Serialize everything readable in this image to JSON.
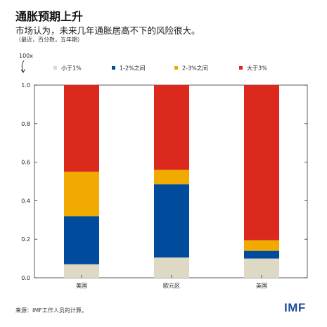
{
  "header": {
    "title": "通胀预期上升",
    "subtitle": "市场认为，未来几年通胀居高不下的风险很大。",
    "note": "（最近，百分数，五年期）"
  },
  "footer": {
    "source": "来源：IMF工作人员的计算。",
    "logo": "IMF"
  },
  "chart_data": {
    "type": "bar",
    "stacked": true,
    "categories": [
      "美国",
      "欧元区",
      "英国"
    ],
    "y_unit_label": "100x",
    "ylim": [
      0,
      1.0
    ],
    "yticks": [
      "0.0",
      "0.2",
      "0.4",
      "0.6",
      "0.8",
      "1.0"
    ],
    "legend_position": "top",
    "series": [
      {
        "name": "小于1%",
        "color": "#ded9c4",
        "values": [
          0.07,
          0.105,
          0.1
        ]
      },
      {
        "name": "1-2%之间",
        "color": "#004b9b",
        "values": [
          0.25,
          0.38,
          0.04
        ]
      },
      {
        "name": "2-3%之间",
        "color": "#f0aa00",
        "values": [
          0.23,
          0.075,
          0.055
        ]
      },
      {
        "name": "大于3%",
        "color": "#dc291e",
        "values": [
          0.45,
          0.44,
          0.805
        ]
      }
    ]
  }
}
